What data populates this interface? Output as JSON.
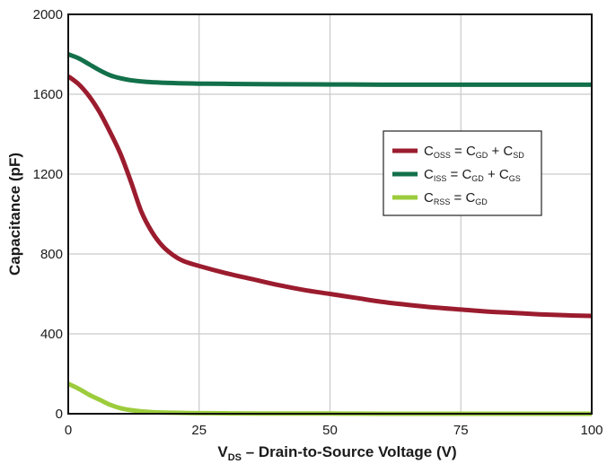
{
  "chart_data": {
    "type": "line",
    "xlabel": {
      "main_prefix": "V",
      "main_sub": "DS",
      "main_rest": " – Drain-to-Source Voltage (V)"
    },
    "ylabel": "Capacitance (pF)",
    "xlim": [
      0,
      100
    ],
    "ylim": [
      0,
      2000
    ],
    "xticks": [
      "0",
      "25",
      "50",
      "75",
      "100"
    ],
    "yticks": [
      "0",
      "400",
      "800",
      "1200",
      "1600",
      "2000"
    ],
    "grid": true,
    "legend_position": "center-right",
    "series": [
      {
        "name": "COSS = CGD + CSD",
        "legend": {
          "parts": [
            {
              "t": "C"
            },
            {
              "t": "OSS",
              "sub": true
            },
            {
              "t": " = C"
            },
            {
              "t": "GD",
              "sub": true
            },
            {
              "t": " + C"
            },
            {
              "t": "SD",
              "sub": true
            }
          ]
        },
        "color": "#9b1c2e",
        "x": [
          0,
          2,
          4,
          6,
          8,
          10,
          12,
          14,
          16,
          18,
          20,
          22,
          25,
          30,
          35,
          40,
          45,
          50,
          55,
          60,
          65,
          70,
          75,
          80,
          85,
          90,
          95,
          100
        ],
        "y": [
          1690,
          1650,
          1590,
          1510,
          1410,
          1300,
          1160,
          1010,
          910,
          840,
          795,
          765,
          740,
          705,
          675,
          645,
          620,
          600,
          580,
          560,
          545,
          532,
          522,
          512,
          505,
          498,
          493,
          490
        ]
      },
      {
        "name": "CISS = CGD + CGS",
        "legend": {
          "parts": [
            {
              "t": "C"
            },
            {
              "t": "ISS",
              "sub": true
            },
            {
              "t": " = C"
            },
            {
              "t": "GD",
              "sub": true
            },
            {
              "t": " + C"
            },
            {
              "t": "GS",
              "sub": true
            }
          ]
        },
        "color": "#12704a",
        "x": [
          0,
          2,
          4,
          6,
          8,
          10,
          12,
          15,
          20,
          25,
          30,
          40,
          50,
          60,
          70,
          80,
          90,
          100
        ],
        "y": [
          1800,
          1780,
          1750,
          1720,
          1695,
          1680,
          1670,
          1662,
          1656,
          1653,
          1652,
          1650,
          1649,
          1648,
          1648,
          1648,
          1648,
          1648
        ]
      },
      {
        "name": "CRSS = CGD",
        "legend": {
          "parts": [
            {
              "t": "C"
            },
            {
              "t": "RSS",
              "sub": true
            },
            {
              "t": " = C"
            },
            {
              "t": "GD",
              "sub": true
            }
          ]
        },
        "color": "#9ccc3c",
        "x": [
          0,
          2,
          4,
          6,
          8,
          10,
          12,
          14,
          16,
          20,
          25,
          30,
          40,
          50,
          60,
          70,
          80,
          90,
          100
        ],
        "y": [
          150,
          125,
          95,
          70,
          45,
          28,
          18,
          12,
          8,
          5,
          3,
          2,
          1,
          1,
          0,
          0,
          0,
          0,
          0
        ]
      }
    ]
  }
}
